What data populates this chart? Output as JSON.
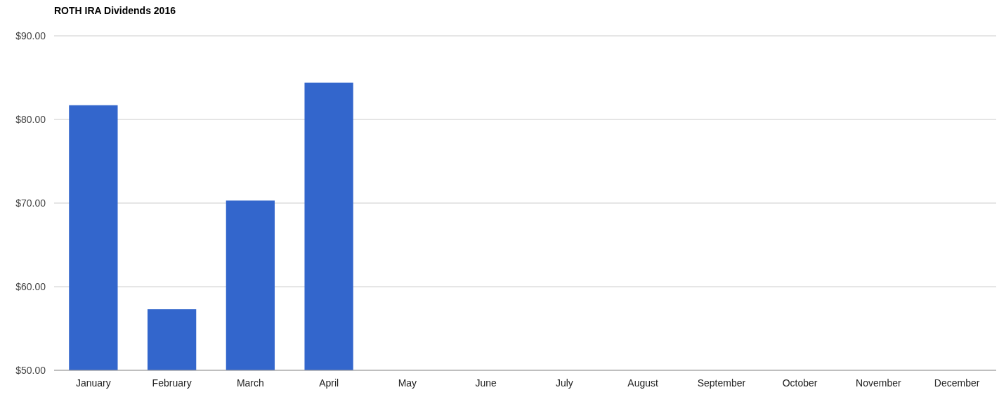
{
  "chart_data": {
    "type": "bar",
    "title": "ROTH IRA Dividends 2016",
    "categories": [
      "January",
      "February",
      "March",
      "April",
      "May",
      "June",
      "July",
      "August",
      "September",
      "October",
      "November",
      "December"
    ],
    "values": [
      81.7,
      57.3,
      70.3,
      84.4,
      null,
      null,
      null,
      null,
      null,
      null,
      null,
      null
    ],
    "color": "#3366cc",
    "ylim": [
      50,
      90
    ],
    "yticks": [
      {
        "value": 50,
        "label": "$50.00"
      },
      {
        "value": 60,
        "label": "$60.00"
      },
      {
        "value": 70,
        "label": "$70.00"
      },
      {
        "value": 80,
        "label": "$80.00"
      },
      {
        "value": 90,
        "label": "$90.00"
      }
    ],
    "grid": true
  }
}
